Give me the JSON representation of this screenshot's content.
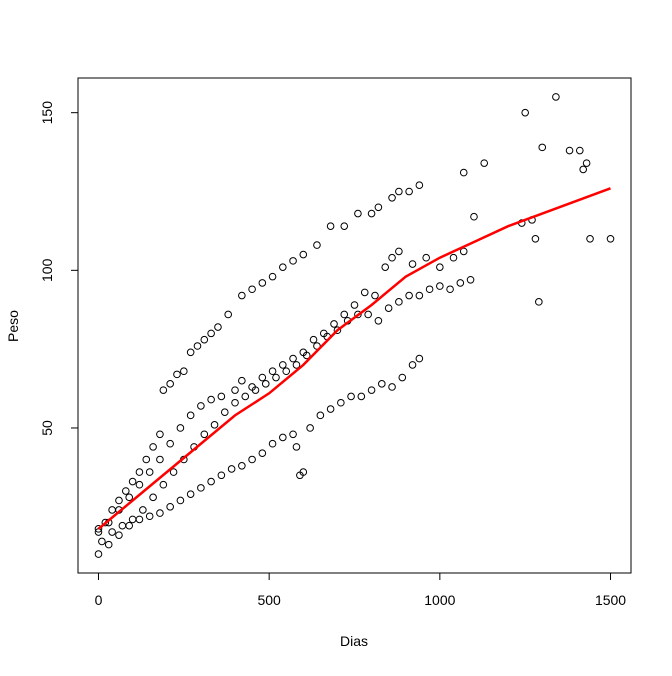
{
  "chart_data": {
    "type": "scatter",
    "xlabel": "Dias",
    "ylabel": "Peso",
    "xlim": [
      -60,
      1560
    ],
    "ylim": [
      4,
      161
    ],
    "xticks": [
      0,
      500,
      1000,
      1500
    ],
    "yticks": [
      50,
      100,
      150
    ],
    "points": {
      "color": "#000000",
      "x": [
        0,
        20,
        40,
        60,
        80,
        100,
        120,
        140,
        160,
        180,
        190,
        210,
        230,
        250,
        270,
        290,
        310,
        330,
        350,
        380,
        420,
        450,
        480,
        510,
        540,
        570,
        600,
        640,
        680,
        720,
        760,
        800,
        820,
        860,
        880,
        910,
        940,
        1070,
        1130,
        1250,
        1300,
        1340,
        1380,
        1410,
        1420,
        1430,
        0,
        30,
        60,
        90,
        120,
        150,
        180,
        210,
        240,
        270,
        300,
        330,
        360,
        400,
        420,
        450,
        480,
        510,
        540,
        570,
        600,
        630,
        660,
        690,
        720,
        750,
        780,
        810,
        840,
        860,
        880,
        920,
        960,
        1000,
        1040,
        1070,
        1100,
        1240,
        1270,
        1280,
        1440,
        1500,
        1290,
        10,
        40,
        70,
        100,
        130,
        160,
        190,
        220,
        250,
        280,
        310,
        340,
        370,
        400,
        430,
        460,
        490,
        520,
        550,
        580,
        610,
        640,
        670,
        700,
        730,
        760,
        790,
        820,
        850,
        880,
        910,
        940,
        970,
        1000,
        1030,
        1060,
        1090,
        0,
        30,
        60,
        90,
        120,
        150,
        180,
        210,
        240,
        270,
        300,
        330,
        360,
        390,
        420,
        450,
        480,
        510,
        540,
        570,
        580,
        590,
        600,
        620,
        650,
        680,
        710,
        740,
        770,
        800,
        830,
        860,
        890,
        920,
        940
      ],
      "y": [
        18,
        20,
        24,
        27,
        30,
        33,
        36,
        40,
        44,
        48,
        62,
        64,
        67,
        68,
        74,
        76,
        78,
        80,
        82,
        86,
        92,
        94,
        96,
        98,
        101,
        103,
        105,
        108,
        114,
        114,
        118,
        118,
        120,
        123,
        125,
        125,
        127,
        131,
        134,
        150,
        139,
        155,
        138,
        138,
        132,
        134,
        17,
        20,
        24,
        28,
        32,
        36,
        40,
        45,
        50,
        54,
        57,
        59,
        60,
        62,
        65,
        63,
        66,
        68,
        70,
        72,
        74,
        78,
        80,
        83,
        86,
        89,
        93,
        92,
        101,
        104,
        106,
        102,
        104,
        101,
        104,
        106,
        117,
        115,
        116,
        110,
        110,
        110,
        90,
        14,
        17,
        19,
        21,
        24,
        28,
        32,
        36,
        40,
        44,
        48,
        51,
        55,
        58,
        60,
        62,
        64,
        66,
        68,
        70,
        73,
        76,
        79,
        81,
        84,
        86,
        86,
        84,
        88,
        90,
        92,
        92,
        94,
        95,
        94,
        96,
        97,
        10,
        13,
        16,
        19,
        21,
        22,
        23,
        25,
        27,
        29,
        31,
        33,
        35,
        37,
        38,
        40,
        42,
        45,
        47,
        48,
        44,
        35,
        36,
        50,
        54,
        56,
        58,
        60,
        60,
        62,
        64,
        63,
        66,
        70,
        72
      ]
    },
    "fit": {
      "color": "#ff0000",
      "x": [
        0,
        100,
        200,
        300,
        400,
        500,
        600,
        700,
        800,
        900,
        1000,
        1100,
        1200,
        1300,
        1400,
        1500
      ],
      "y": [
        18,
        27,
        36,
        45,
        54,
        61,
        70,
        81,
        89,
        98,
        104,
        109,
        114,
        118,
        122,
        126
      ]
    }
  }
}
